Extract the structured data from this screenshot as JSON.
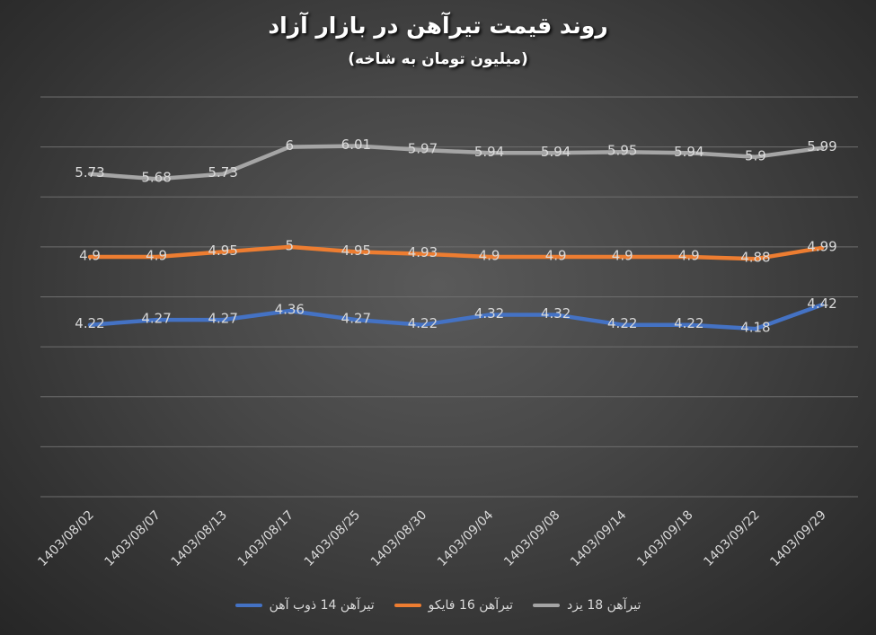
{
  "chart_data": {
    "type": "line",
    "title": "روند قیمت تیرآهن در بازار آزاد",
    "subtitle": "(میلیون تومان به شاخه)",
    "categories": [
      "1403/08/02",
      "1403/08/07",
      "1403/08/13",
      "1403/08/17",
      "1403/08/25",
      "1403/08/30",
      "1403/09/04",
      "1403/09/08",
      "1403/09/14",
      "1403/09/18",
      "1403/09/22",
      "1403/09/29"
    ],
    "series": [
      {
        "name": "تیرآهن 14 ذوب آهن",
        "color": "#4472c4",
        "values": [
          4.22,
          4.27,
          4.27,
          4.36,
          4.27,
          4.22,
          4.32,
          4.32,
          4.22,
          4.22,
          4.18,
          4.42
        ]
      },
      {
        "name": "تیرآهن 16 فایکو",
        "color": "#ed7d31",
        "values": [
          4.9,
          4.9,
          4.95,
          5,
          4.95,
          4.93,
          4.9,
          4.9,
          4.9,
          4.9,
          4.88,
          4.99
        ]
      },
      {
        "name": "تیرآهن 18 یزد",
        "color": "#a5a5a5",
        "values": [
          5.73,
          5.68,
          5.73,
          6,
          6.01,
          5.97,
          5.94,
          5.94,
          5.95,
          5.94,
          5.9,
          5.99
        ]
      }
    ],
    "ylim": [
      2.5,
      6.5
    ],
    "grid": true,
    "legend_position": "bottom"
  }
}
